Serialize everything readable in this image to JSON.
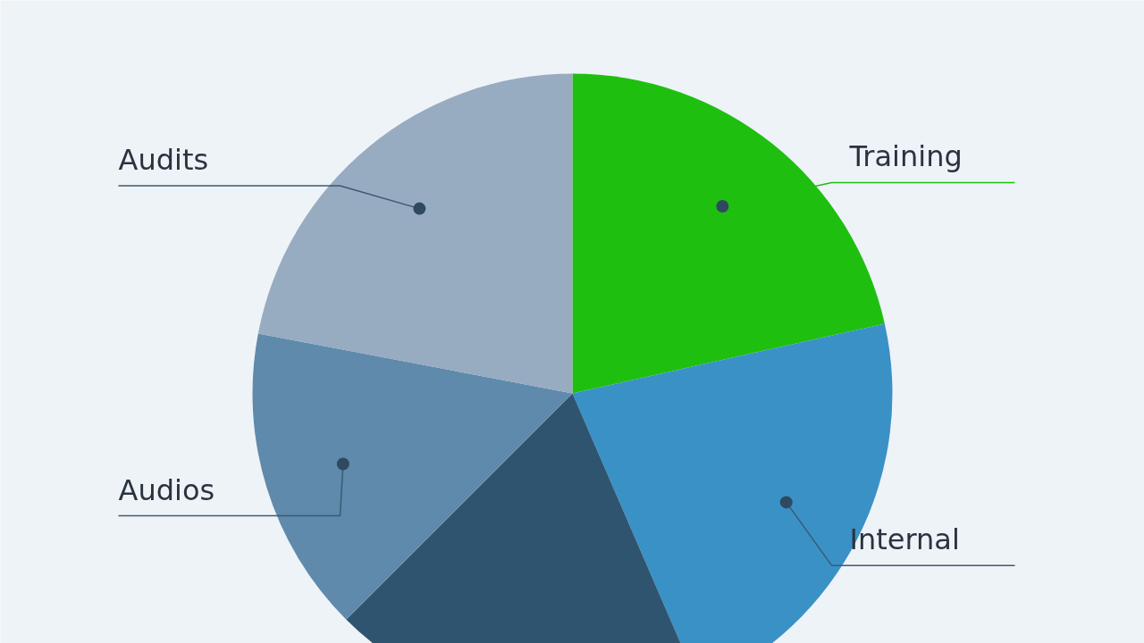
{
  "chart_data": {
    "type": "pie",
    "categories": [
      "Training",
      "Internal",
      null,
      "Audios",
      "Audits"
    ],
    "values": [
      21.5,
      22,
      19,
      15.5,
      22
    ],
    "colors": [
      "#1fbf10",
      "#3a91c6",
      "#2f5470",
      "#5f8aab",
      "#97abc1"
    ]
  }
}
